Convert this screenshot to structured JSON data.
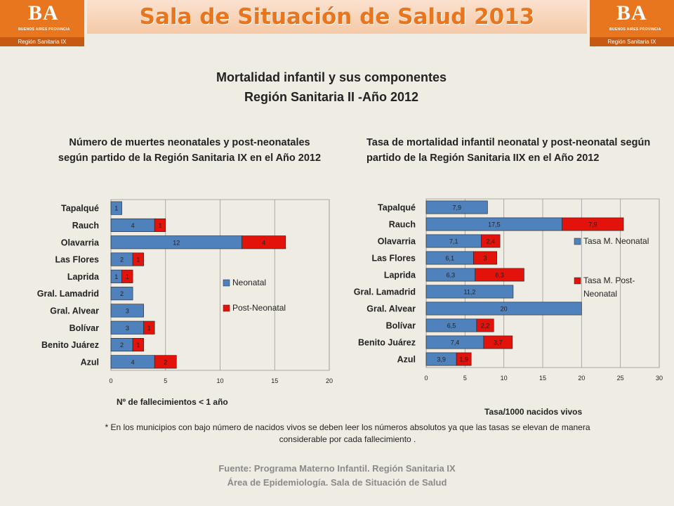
{
  "header": {
    "banner_title": "Sala de Situación de Salud 2013",
    "logo_text": "BA",
    "logo_subtext": "BUENOS AIRES PROVINCIA",
    "logo_region": "Región Sanitaria IX",
    "brand_color": "#e8761f"
  },
  "title": {
    "line1": "Mortalidad infantil y sus componentes",
    "line2": "Región Sanitaria II -Año 2012"
  },
  "chart_data": [
    {
      "type": "bar",
      "orientation": "horizontal",
      "stacked": true,
      "title_line1": "Número de muertes neonatales y post-neonatales",
      "title_line2": "según partido de la Región Sanitaria IX en el Año 2012",
      "xlabel": "Nº de fallecimientos < 1 año",
      "categories": [
        "Tapalqué",
        "Rauch",
        "Olavarria",
        "Las Flores",
        "Laprida",
        "Gral. Lamadrid",
        "Gral. Alvear",
        "Bolívar",
        "Benito Juárez",
        "Azul"
      ],
      "series": [
        {
          "name": "Neonatal",
          "color": "#4f81bd",
          "values": [
            1,
            4,
            12,
            2,
            1,
            2,
            3,
            3,
            2,
            4
          ]
        },
        {
          "name": "Post-Neonatal",
          "color": "#e3120b",
          "values": [
            null,
            1,
            4,
            1,
            1,
            null,
            null,
            1,
            1,
            2
          ]
        }
      ],
      "xlim": [
        0,
        20
      ],
      "xticks": [
        0,
        5,
        10,
        15,
        20
      ],
      "grid": "vertical",
      "legend": "right"
    },
    {
      "type": "bar",
      "orientation": "horizontal",
      "stacked": true,
      "title_line1": "Tasa de mortalidad infantil neonatal y post-neonatal según",
      "title_line2": "partido de la Región Sanitaria IIX  en el Año 2012",
      "xlabel": "Tasa/1000  nacidos vivos",
      "categories": [
        "Tapalqué",
        "Rauch",
        "Olavarria",
        "Las Flores",
        "Laprida",
        "Gral. Lamadrid",
        "Gral. Alvear",
        "Bolívar",
        "Benito Juárez",
        "Azul"
      ],
      "series": [
        {
          "name": "Tasa M. Neonatal",
          "color": "#4f81bd",
          "values": [
            7.9,
            17.5,
            7.1,
            6.1,
            6.3,
            11.2,
            20,
            6.5,
            7.4,
            3.9
          ],
          "labels": [
            "7,9",
            "17,5",
            "7,1",
            "6,1",
            "6,3",
            "11,2",
            "20",
            "6,5",
            "7,4",
            "3,9"
          ]
        },
        {
          "name": "Tasa M. Post-Neonatal",
          "legend_line1": "Tasa M. Post-",
          "legend_line2": "Neonatal",
          "color": "#e3120b",
          "values": [
            null,
            7.9,
            2.4,
            3,
            6.3,
            null,
            null,
            2.2,
            3.7,
            1.9
          ],
          "labels": [
            "",
            "7,9",
            "2,4",
            "3",
            "6,3",
            "",
            "",
            "2,2",
            "3,7",
            "1,9"
          ]
        }
      ],
      "xlim": [
        0,
        30
      ],
      "xticks": [
        0,
        5,
        10,
        15,
        20,
        25,
        30
      ],
      "grid": "vertical",
      "legend": "right"
    }
  ],
  "note": {
    "line1": "* En los municipios con bajo número de nacidos vivos se  deben leer  los números absolutos ya que las tasas se elevan de manera",
    "line2": "considerable por cada fallecimiento ."
  },
  "footer": {
    "line1": "Fuente: Programa Materno Infantil. Región Sanitaria IX",
    "line2": "Área de Epidemiología. Sala de Situación de Salud"
  }
}
